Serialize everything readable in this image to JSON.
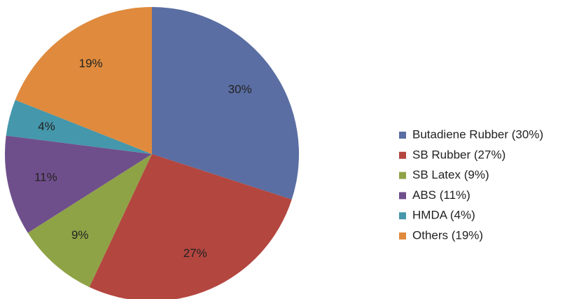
{
  "chart_data": {
    "type": "pie",
    "categories": [
      "Butadiene Rubber (30%)",
      "SB Rubber (27%)",
      "SB Latex (9%)",
      "ABS (11%)",
      "HMDA (4%)",
      "Others (19%)"
    ],
    "values": [
      30,
      27,
      9,
      11,
      4,
      19
    ],
    "value_labels": [
      "30%",
      "27%",
      "9%",
      "11%",
      "4%",
      "19%"
    ],
    "colors": [
      "#5a6ea3",
      "#b3463f",
      "#8ea346",
      "#6f4f8b",
      "#4597ab",
      "#df8a3d"
    ],
    "legend": "right"
  }
}
